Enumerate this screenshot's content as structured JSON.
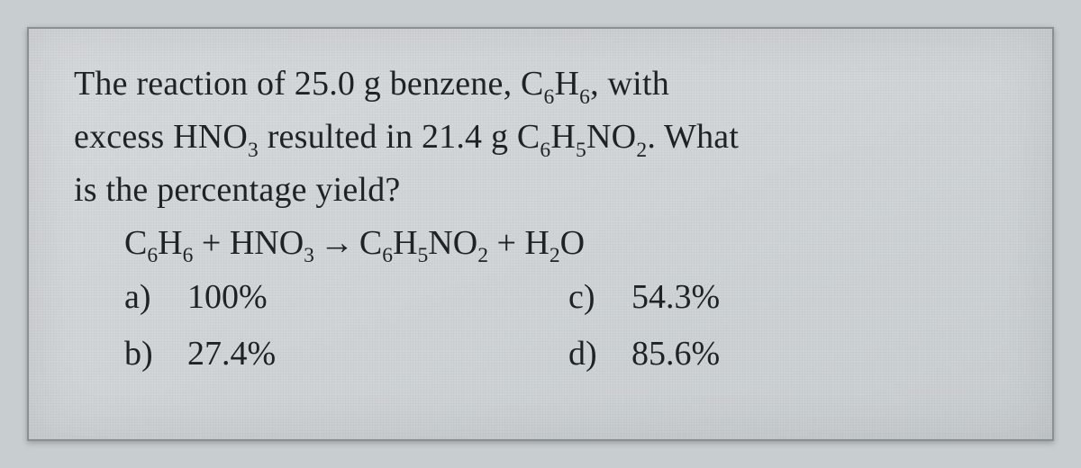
{
  "question": {
    "line1_a": "The reaction of 25.0 g benzene, ",
    "line1_b": " with",
    "line2_a": "excess ",
    "line2_b": " resulted in 21.4 g ",
    "line2_c": "  What",
    "line3": "is the percentage yield?",
    "hno3": "HNO",
    "hno3_sub": "3",
    "benz": "C",
    "benz_s1": "6",
    "benz_h": "H",
    "benz_s2": "6",
    "benz_comma": ",",
    "prod": "C",
    "prod_s1": "6",
    "prod_h": "H",
    "prod_s2": "5",
    "prod_n": "NO",
    "prod_s3": "2",
    "prod_period": "."
  },
  "equation": {
    "c": "C",
    "s6a": "6",
    "h": "H",
    "s6b": "6",
    "plus1": " + ",
    "hno": "HNO",
    "s3": "3",
    "arrow": "→",
    "c2": "C",
    "s6c": "6",
    "h2": "H",
    "s5": "5",
    "no": "NO",
    "s2": "2",
    "plus2": " + ",
    "h2o_h": "H",
    "h2o_2": "2",
    "h2o_o": "O"
  },
  "options": {
    "a": {
      "label": "a)",
      "value": "100%"
    },
    "b": {
      "label": "b)",
      "value": "27.4%"
    },
    "c": {
      "label": "c)",
      "value": "54.3%"
    },
    "d": {
      "label": "d)",
      "value": "85.6%"
    }
  },
  "style": {
    "text_color": "#1f2325",
    "background": "#d1d5d7",
    "border": "#8a8f91",
    "font_family": "Times New Roman",
    "base_fontsize_pt": 28
  }
}
